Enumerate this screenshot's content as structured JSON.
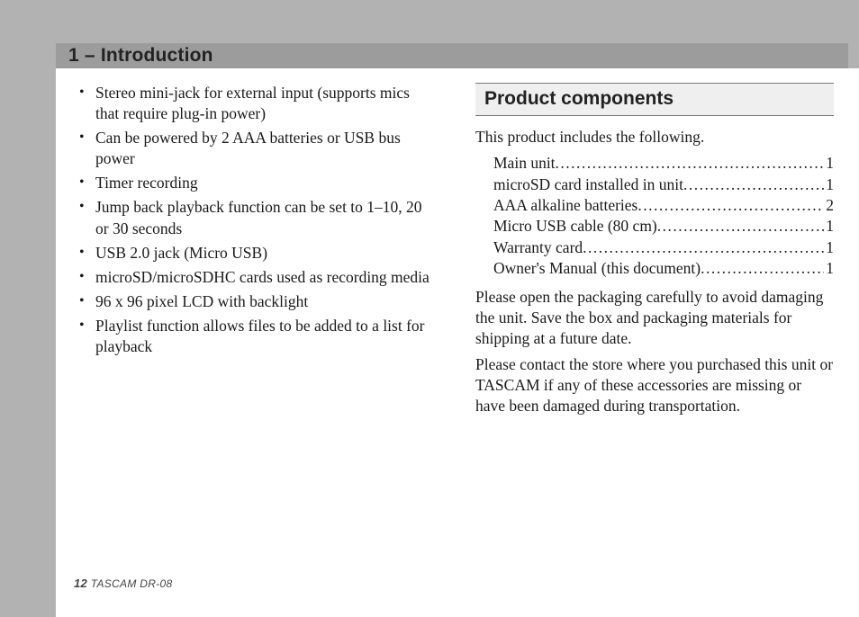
{
  "chapter_title": "1 – Introduction",
  "features": [
    "Stereo mini-jack for external input (supports mics that require plug-in power)",
    "Can be powered by 2 AAA batteries or USB bus power",
    "Timer recording",
    "Jump back playback function can be set to 1–10, 20 or 30 seconds",
    "USB 2.0 jack (Micro USB)",
    "microSD/microSDHC cards used as recording media",
    "96 x 96 pixel LCD with backlight",
    "Playlist function allows files to be added to a list for playback"
  ],
  "section_heading": "Product components",
  "components_intro": "This product includes the following.",
  "components": [
    {
      "label": "Main unit",
      "qty": "1"
    },
    {
      "label": "microSD card installed in unit",
      "qty": "1"
    },
    {
      "label": "AAA alkaline batteries",
      "qty": "2"
    },
    {
      "label": "Micro USB cable (80 cm)",
      "qty": "1"
    },
    {
      "label": "Warranty card",
      "qty": "1"
    },
    {
      "label": "Owner's Manual (this document)",
      "qty": "1"
    }
  ],
  "note1": "Please open the packaging carefully to avoid damaging the unit. Save the box and packaging materials for shipping at a future date.",
  "note2": "Please contact the store where you purchased this unit or TASCAM if any of these accessories are missing or have been damaged during transportation.",
  "footer": {
    "page": "12",
    "model": "TASCAM  DR-08"
  }
}
